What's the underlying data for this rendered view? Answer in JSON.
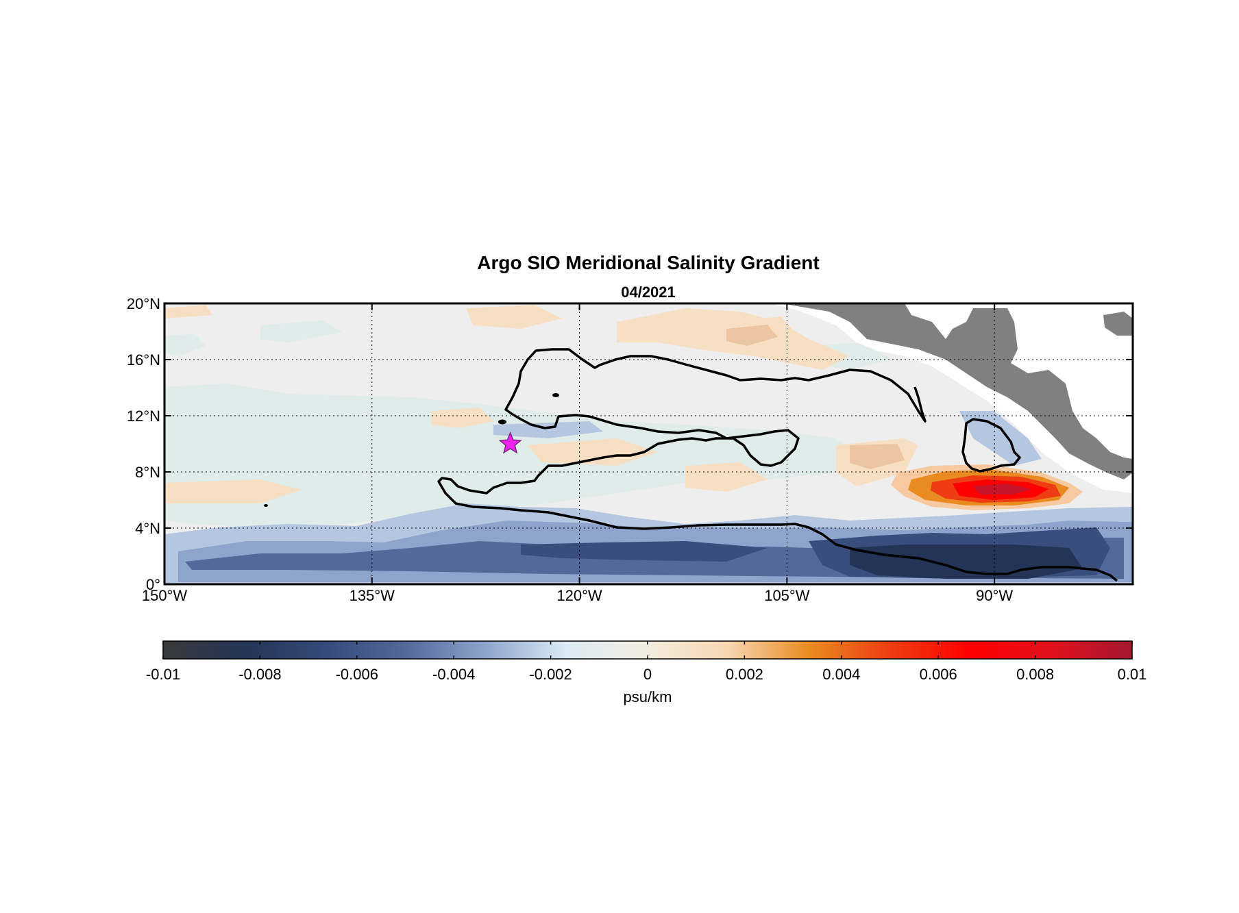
{
  "chart_data": {
    "type": "heatmap",
    "title": "Argo SIO Meridional Salinity Gradient",
    "subtitle": "04/2021",
    "x_ticks": [
      "150°W",
      "135°W",
      "120°W",
      "105°W",
      "90°W"
    ],
    "x_tick_values": [
      -150,
      -135,
      -120,
      -105,
      -90
    ],
    "y_ticks": [
      "20°N",
      "16°N",
      "12°N",
      "8°N",
      "4°N",
      "0°"
    ],
    "y_tick_values": [
      20,
      16,
      12,
      8,
      4,
      0
    ],
    "xlim": [
      -150,
      -80
    ],
    "ylim": [
      0,
      20
    ],
    "grid": true,
    "colorbar": {
      "label": "psu/km",
      "range": [
        -0.01,
        0.01
      ],
      "ticks": [
        "-0.01",
        "-0.008",
        "-0.006",
        "-0.004",
        "-0.002",
        "0",
        "0.002",
        "0.004",
        "0.006",
        "0.008",
        "0.01"
      ],
      "tick_values": [
        -0.01,
        -0.008,
        -0.006,
        -0.004,
        -0.002,
        0,
        0.002,
        0.004,
        0.006,
        0.008,
        0.01
      ],
      "colors": [
        "#3a3a3a",
        "#243456",
        "#344a78",
        "#52699a",
        "#8ea4cd",
        "#dcebf4",
        "#f2ecdf",
        "#f7d6b0",
        "#e98b20",
        "#ee3d12",
        "#ff0000",
        "#e2101c",
        "#a51731"
      ]
    },
    "marker": {
      "type": "star",
      "lon": -125,
      "lat": 10,
      "color": "#ee22ee"
    },
    "features": {
      "strong_positive_max": {
        "lon": -90,
        "lat": 7,
        "value": 0.009
      },
      "strong_negative_band": {
        "lat_range": [
          0,
          5
        ],
        "min_value": -0.009
      },
      "land": "Central America / Mexico (upper right)"
    }
  }
}
